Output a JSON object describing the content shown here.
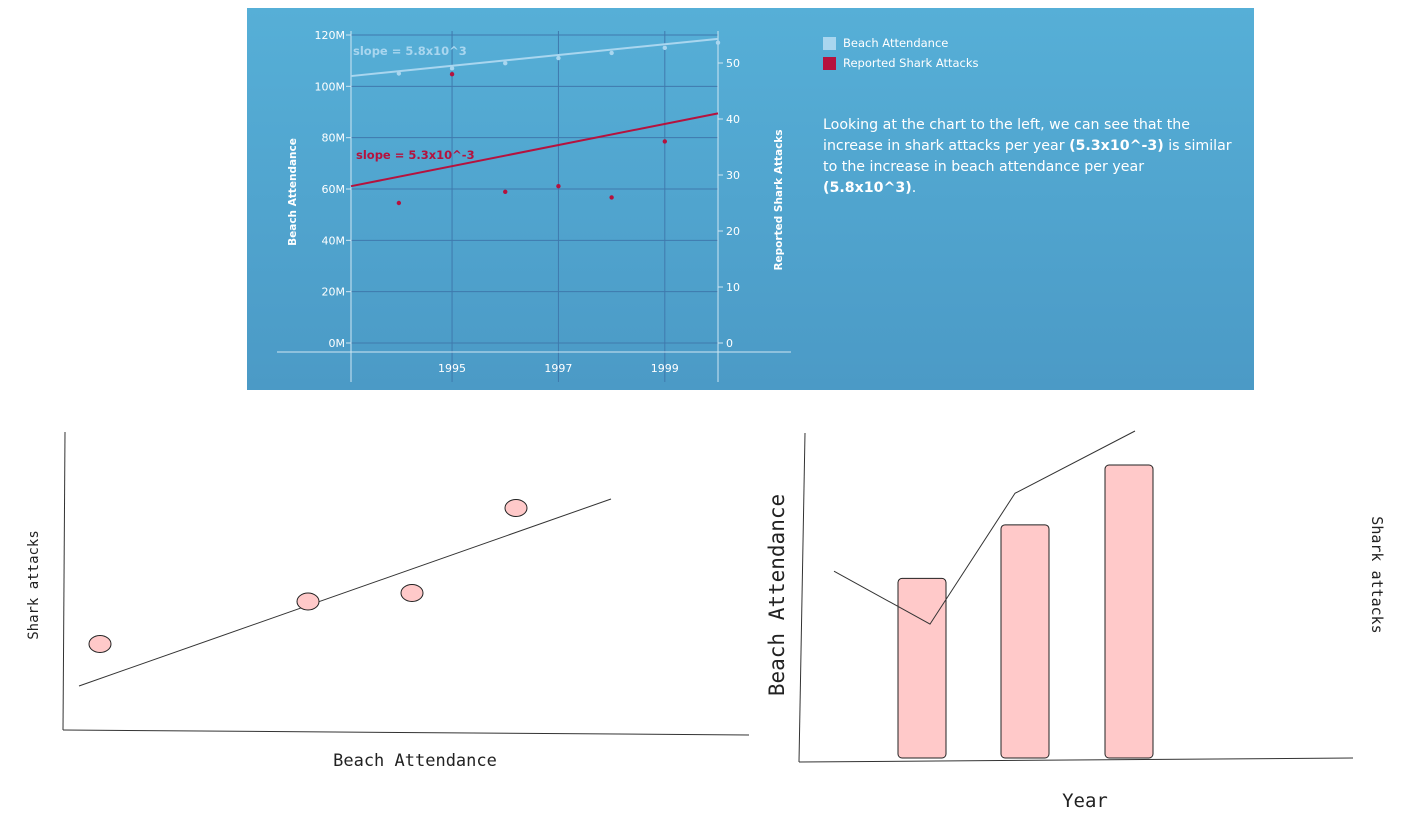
{
  "chart_data": [
    {
      "type": "scatter",
      "subtype": "dual-axis scatter with linear trend lines",
      "x": [
        1994,
        1995,
        1996,
        1997,
        1998,
        1999,
        2000
      ],
      "x_ticks": [
        "1995",
        "1997",
        "1999"
      ],
      "xlim": [
        1993.1,
        2000
      ],
      "y_left": {
        "label": "Beach Attendance",
        "ticks": [
          "0M",
          "20M",
          "40M",
          "60M",
          "80M",
          "100M",
          "120M"
        ],
        "ylim": [
          0,
          120
        ]
      },
      "y_right": {
        "label": "Reported Shark Attacks",
        "ticks": [
          "0",
          "10",
          "20",
          "30",
          "40",
          "50"
        ],
        "ylim": [
          0,
          55
        ]
      },
      "series": [
        {
          "name": "Beach Attendance",
          "axis": "left",
          "color": "#a9d6ef",
          "values": [
            105,
            107,
            109,
            111,
            113,
            115,
            117
          ],
          "trend": {
            "x": [
              1993.1,
              2000
            ],
            "y": [
              104,
              118.5
            ],
            "label": "slope = 5.8x10^3"
          }
        },
        {
          "name": "Reported Shark Attacks",
          "axis": "right",
          "color": "#b5123e",
          "values": [
            25,
            48,
            27,
            28,
            26,
            36,
            null
          ],
          "trend": {
            "x": [
              1993.1,
              2000
            ],
            "y": [
              28,
              41
            ],
            "label": "slope = 5.3x10^-3"
          }
        }
      ],
      "grid": true,
      "legend": "right"
    },
    {
      "type": "scatter",
      "style": "hand-drawn sketch",
      "xlabel": "Beach Attendance",
      "ylabel": "Shark attacks",
      "points": [
        [
          1,
          2
        ],
        [
          3,
          3
        ],
        [
          4,
          3.2
        ],
        [
          5,
          5.2
        ]
      ],
      "trendline": true
    },
    {
      "type": "bar",
      "style": "hand-drawn sketch with line overlay",
      "xlabel": "Year",
      "ylabel": "Beach Attendance",
      "y2label": "Shark attacks",
      "values": [
        5.7,
        7.4,
        9.3
      ],
      "line": [
        6,
        4.3,
        8.5,
        10.5
      ]
    }
  ],
  "legend": {
    "items": [
      {
        "label": "Beach Attendance",
        "color": "#a9d6ef"
      },
      {
        "label": "Reported Shark Attacks",
        "color": "#b5123e"
      }
    ]
  },
  "description": {
    "part1": "Looking at the chart to the left, we can see that the increase in shark attacks per year ",
    "bold1": "(5.3x10^-3)",
    "part2": " is similar to the increase in beach attendance per year ",
    "bold2": "(5.8x10^3)",
    "part3": "."
  },
  "colors": {
    "panel_gradient_top": "#56afd7",
    "panel_gradient_bottom": "#4b9ac6",
    "bar_fill": "#ffc9c9"
  }
}
